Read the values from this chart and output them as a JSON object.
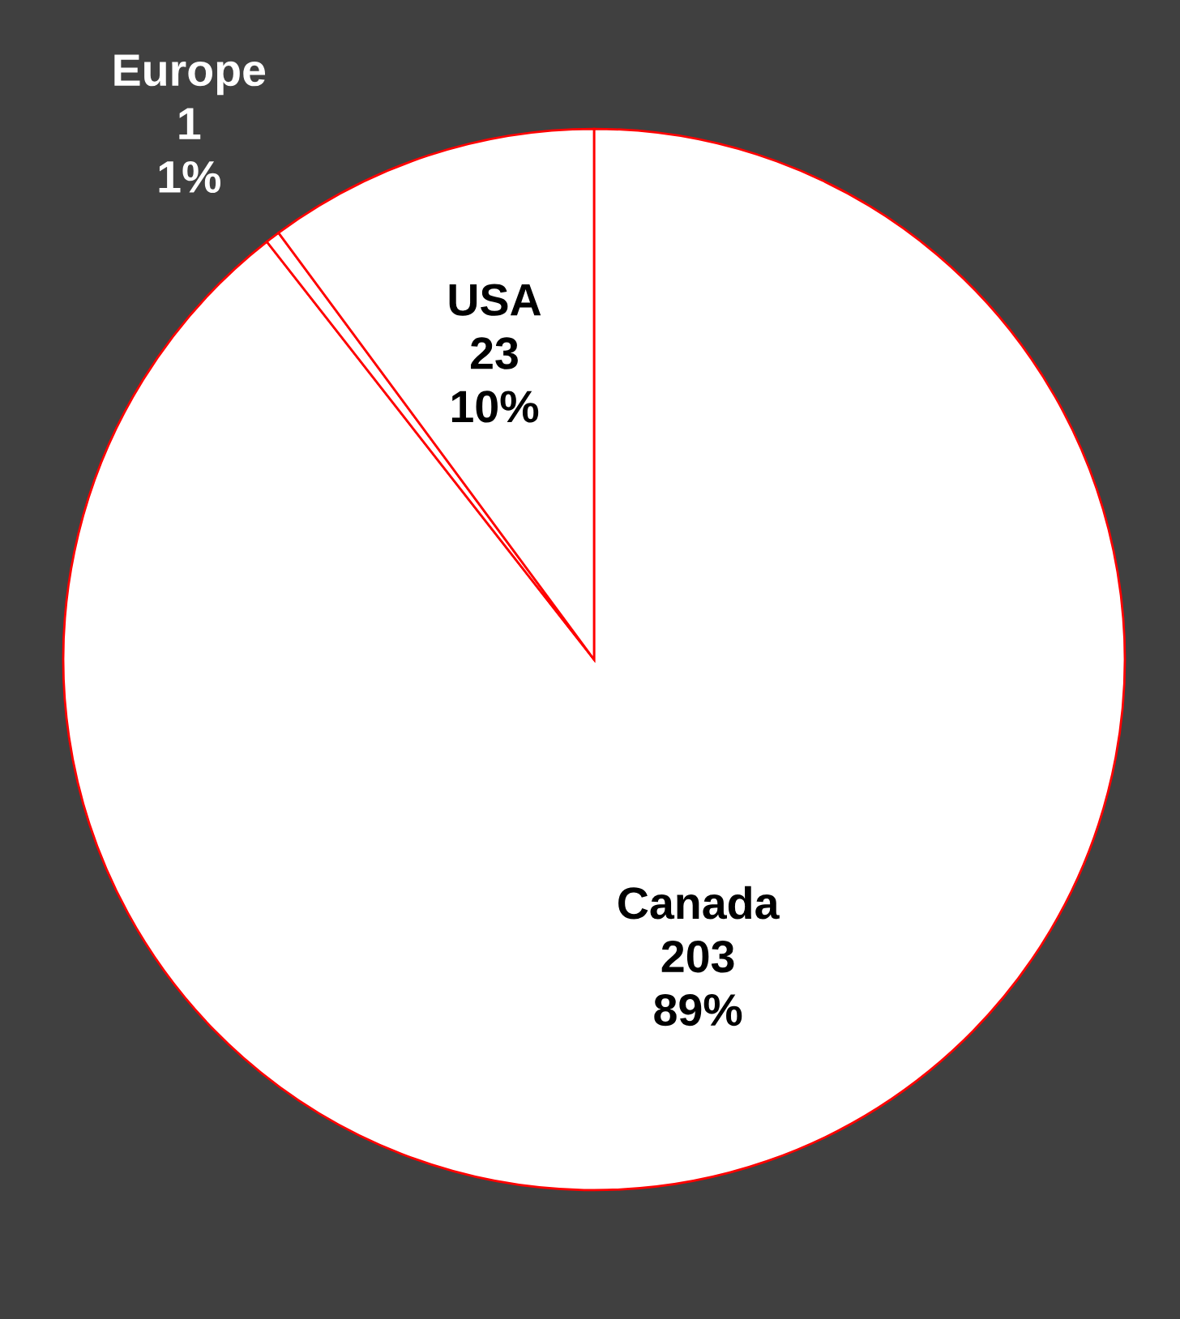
{
  "chart_data": {
    "type": "pie",
    "categories": [
      "Canada",
      "Europe",
      "USA"
    ],
    "values": [
      203,
      1,
      23
    ],
    "value_labels": [
      "203\n89%",
      "1\n1%",
      "23\n10%"
    ],
    "colors": [
      "#ffffff",
      "#ffffff",
      "#ffffff"
    ]
  }
}
